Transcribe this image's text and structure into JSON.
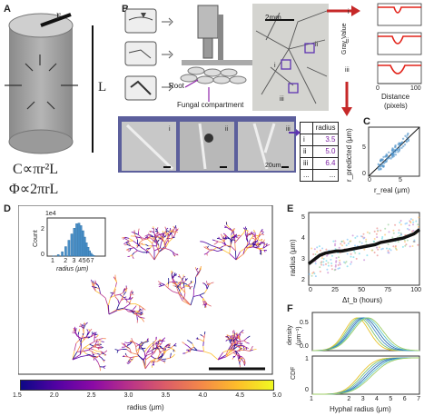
{
  "panels": {
    "A": {
      "letter": "A",
      "label_r": "r",
      "label_L": "L",
      "formula1": "C∝πr²L",
      "formula2": "Φ∝2πrL"
    },
    "B": {
      "letter": "B",
      "root_label": "Root",
      "fungal_label": "Fungal compartment",
      "scale_2mm": "2mm",
      "scale_20um": "20um",
      "roman": [
        "i",
        "ii",
        "iii"
      ]
    },
    "B_profile": {
      "ylabel": "Gray Value",
      "xlabel_line1": "Distance",
      "xlabel_line2": "(pixels)",
      "xticks": [
        "0",
        "100"
      ],
      "labels": [
        "i",
        "ii",
        "iii"
      ],
      "colors": [
        "#e2231a"
      ]
    },
    "B_table": {
      "header": "radius",
      "rows": [
        {
          "k": "i",
          "v": "3.5"
        },
        {
          "k": "ii",
          "v": "5.0"
        },
        {
          "k": "iii",
          "v": "6.4"
        },
        {
          "k": "...",
          "v": "..."
        }
      ],
      "value_color": "#7b1fa2"
    },
    "C": {
      "letter": "C",
      "xlabel": "r_real (μm)",
      "ylabel": "r_predicted (μm)",
      "ticks": [
        "0",
        "5"
      ]
    },
    "D": {
      "letter": "D",
      "hist_ylabel": "Count",
      "hist_exp": "1e4",
      "hist_yticks": [
        "0",
        "2"
      ],
      "hist_xticks": [
        "1",
        "2",
        "3",
        "4",
        "5",
        "6",
        "7"
      ],
      "hist_xlabel": "radius (μm)",
      "colorbar_ticks": [
        "1.5",
        "2.0",
        "2.5",
        "3.0",
        "3.5",
        "4.0",
        "4.5",
        "5.0"
      ],
      "colorbar_label": "radius (μm)"
    },
    "E": {
      "letter": "E",
      "ylabel": "radius (μm)",
      "xlabel": "Δt_b (hours)",
      "xticks": [
        "0",
        "25",
        "50",
        "75",
        "100"
      ],
      "yticks": [
        "2",
        "3",
        "4",
        "5"
      ]
    },
    "F": {
      "letter": "F",
      "top_ylabel_line1": "density",
      "top_ylabel_line2": "(μm⁻¹)",
      "top_yticks": [
        "0.0",
        "0.5"
      ],
      "bottom_ylabel": "CDF",
      "bottom_yticks": [
        "0",
        "1"
      ],
      "xticks": [
        "1",
        "2",
        "3",
        "4",
        "5",
        "6",
        "7"
      ],
      "xlabel": "Hyphal radius (μm)"
    }
  },
  "chart_data": [
    {
      "type": "scatter",
      "title": "",
      "xlabel": "r_real (μm)",
      "ylabel": "r_predicted (μm)",
      "xlim": [
        0,
        8
      ],
      "ylim": [
        0,
        8
      ],
      "note": "scatter around identity line"
    },
    {
      "type": "bar",
      "title": "",
      "xlabel": "radius (μm)",
      "ylabel": "Count",
      "ylim": [
        0,
        30000
      ],
      "x": [
        1.2,
        1.4,
        1.6,
        1.8,
        2.0,
        2.2,
        2.4,
        2.6,
        2.8,
        3.0,
        3.2,
        3.4,
        3.6,
        3.8,
        4.0,
        4.2,
        4.4,
        4.6
      ],
      "values": [
        300,
        1200,
        3500,
        7500,
        12500,
        17500,
        22000,
        25500,
        26000,
        24000,
        20000,
        15000,
        10500,
        7000,
        4200,
        2300,
        1100,
        500
      ]
    },
    {
      "type": "line",
      "title": "",
      "xlabel": "Δt_b (hours)",
      "ylabel": "radius (μm)",
      "ylim": [
        1.8,
        5.2
      ],
      "series": [
        {
          "x": [
            0,
            5,
            10,
            15,
            20,
            25,
            30,
            35,
            40,
            45,
            50,
            55,
            60,
            65,
            70,
            75,
            80,
            85,
            90,
            95,
            100
          ],
          "values": [
            2.8,
            3.0,
            3.2,
            3.3,
            3.35,
            3.4,
            3.4,
            3.45,
            3.5,
            3.55,
            3.6,
            3.65,
            3.7,
            3.8,
            3.85,
            3.9,
            3.95,
            4.0,
            4.1,
            4.2,
            4.4
          ]
        }
      ]
    },
    {
      "type": "line",
      "title": "",
      "xlabel": "Hyphal radius (μm)",
      "ylabel": "density (μm⁻¹)",
      "note": "multiple density curves peaking near 2.7 μm"
    }
  ]
}
